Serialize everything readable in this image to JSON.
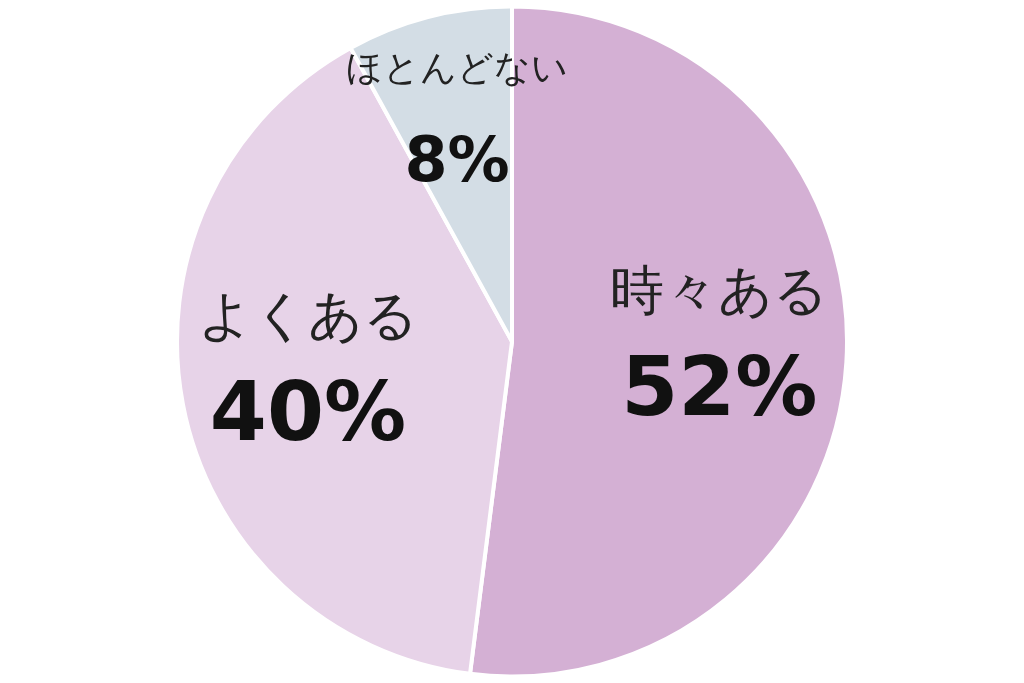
{
  "chart_data": {
    "type": "pie",
    "categories": [
      "時々ある",
      "よくある",
      "ほとんどない"
    ],
    "values": [
      52,
      40,
      8
    ],
    "colors": [
      "#d4b0d4",
      "#e7d3e8",
      "#d3dde5"
    ],
    "value_labels": [
      "52%",
      "40%",
      "8%"
    ]
  }
}
